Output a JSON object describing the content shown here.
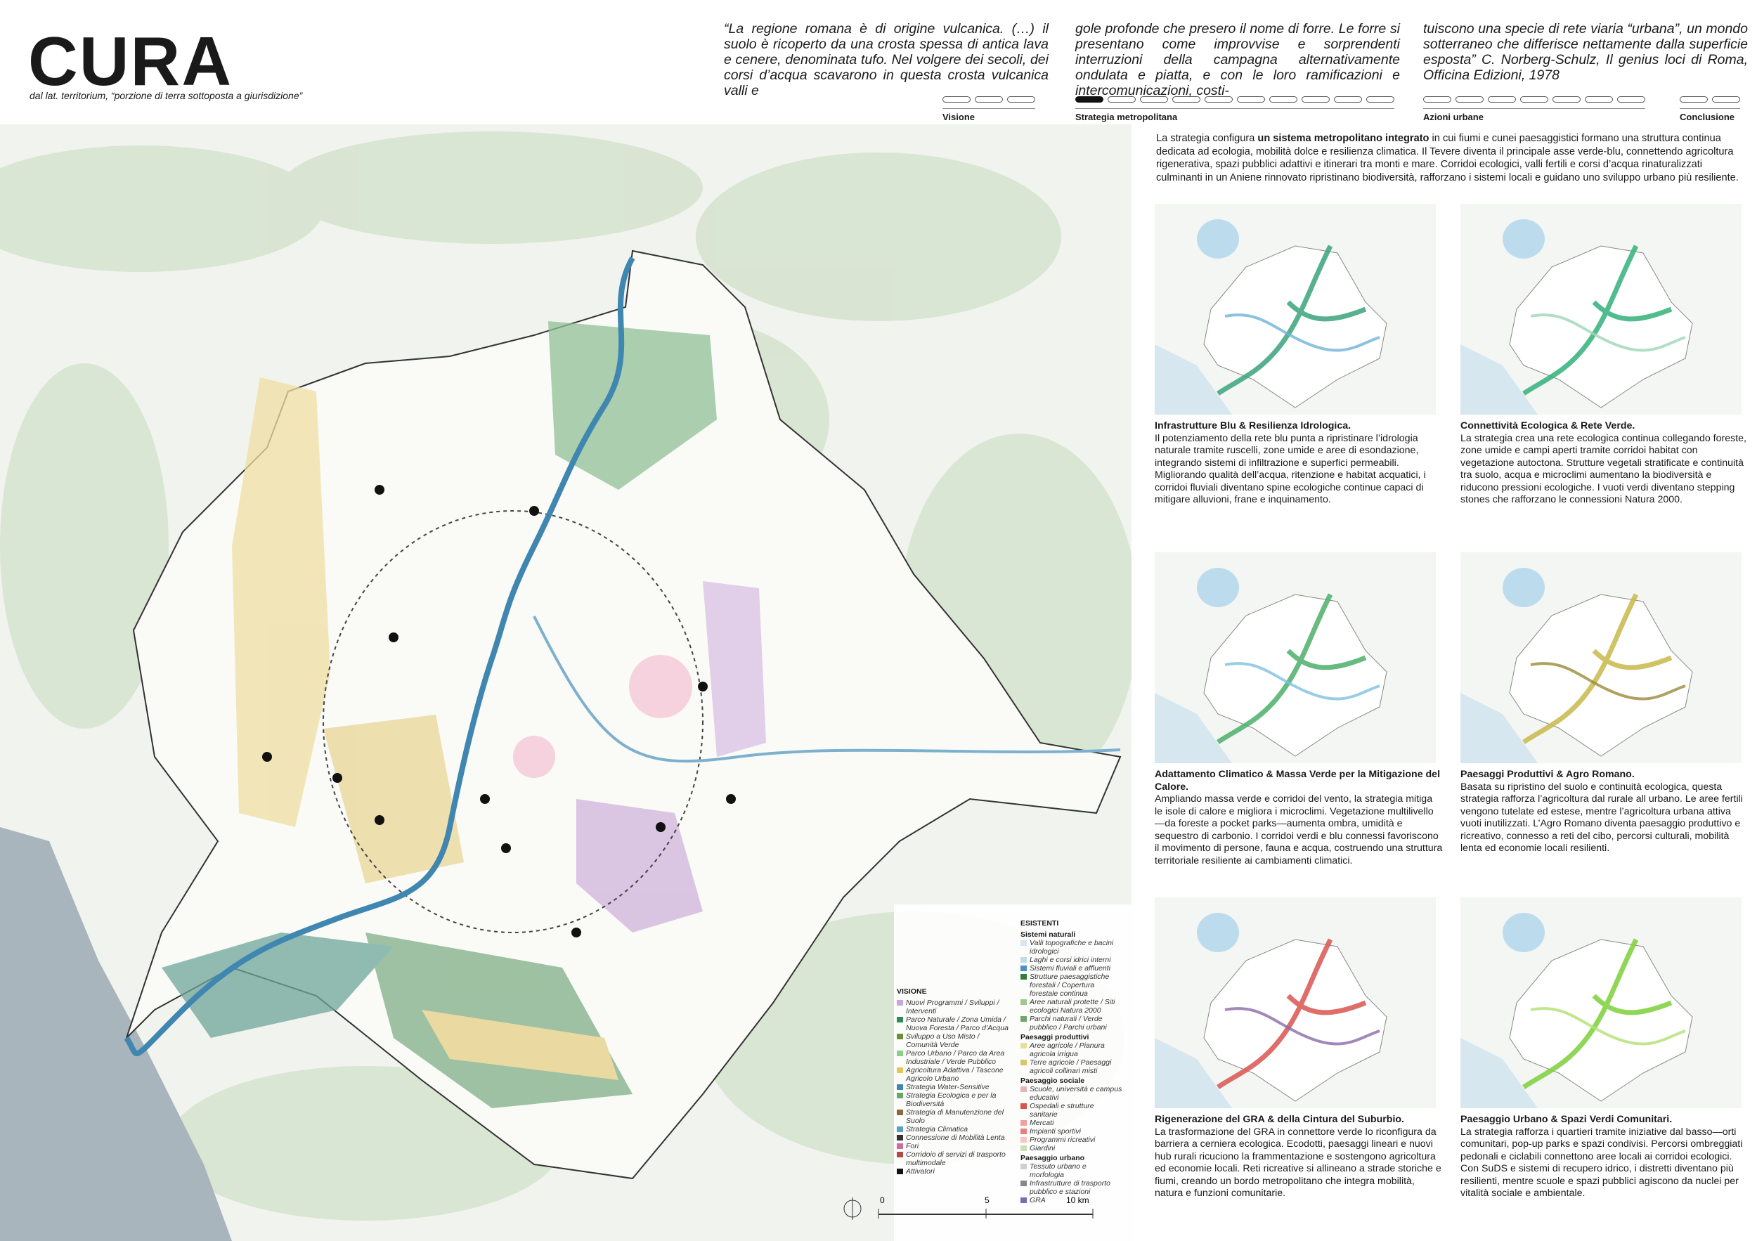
{
  "header": {
    "title": "CURA",
    "subtitle": "dal lat. territorium, “porzione di terra sottoposta a giurisdizione”"
  },
  "quote": [
    "“La regione romana è di origine vulcanica. (…) il suolo è ricoperto da una crosta spessa di antica lava e cenere, denominata tufo. Nel volgere dei secoli, dei corsi d’acqua scavarono in questa crosta vulcanica valli e",
    "gole profonde che presero il nome di forre. Le forre si presentano come improvvise e sorprendenti interruzioni della campagna alternativamente ondulata e piatta, e con le loro ramificazioni e intercomunicazioni, costi-",
    "tuiscono una specie di rete viaria “urbana”, un mondo sotterraneo che differisce nettamente dalla superficie esposta” C. Norberg-Schulz, Il genius loci di Roma, Officina Edizioni, 1978"
  ],
  "nav": [
    "Visione",
    "Strategia metropolitana",
    "Azioni urbane",
    "Conclusione"
  ],
  "intro": {
    "before": "La strategia configura ",
    "bold": "un sistema metropolitano integrato",
    "after": " in cui fiumi e cunei paesaggistici formano una struttura continua dedicata ad ecologia, mobilità dolce e resilienza climatica. Il Tevere diventa il principale asse verde-blu, connettendo agricoltura rigenerativa, spazi pubblici adattivi e itinerari tra monti e mare. Corridoi ecologici, valli fertili e corsi d’acqua rinaturalizzati culminanti in un Aniene rinnovato ripristinano biodiversità, rafforzano i sistemi locali e guidano uno sviluppo urbano più resiliente."
  },
  "panels": [
    {
      "title": "Infrastrutture Blu & Resilienza Idrologica.",
      "body": "Il potenziamento della rete blu punta a ripristinare l’idrologia naturale tramite ruscelli, zone umide e aree di esondazione, integrando sistemi di infiltrazione e superfici permeabili. Migliorando qualità dell’acqua, ritenzione e habitat acquatici, i corridoi fluviali diventano spine ecologiche continue capaci di mitigare alluvioni, frane e inquinamento."
    },
    {
      "title": "Connettività Ecologica & Rete Verde.",
      "body": "La strategia crea una rete ecologica continua collegando foreste, zone umide e campi aperti tramite corridoi habitat con vegetazione autoctona. Strutture vegetali stratificate e continuità tra suolo, acqua e microclimi aumentano la biodiversità e riducono pressioni ecologiche. I vuoti verdi diventano stepping stones che rafforzano le connessioni Natura 2000."
    },
    {
      "title": "Adattamento Climatico & Massa Verde per la Mitigazione del Calore.",
      "body": "Ampliando massa verde e corridoi del vento, la strategia mitiga le isole di calore e migliora i microclimi. Vegetazione multilivello—da foreste a pocket parks—aumenta ombra, umidità e sequestro di carbonio. I corridoi verdi e blu connessi favoriscono il movimento di persone, fauna e acqua, costruendo una struttura territoriale resiliente ai cambiamenti climatici."
    },
    {
      "title": "Paesaggi Produttivi & Agro Romano.",
      "body": "Basata su ripristino del suolo e continuità ecologica, questa strategia rafforza l’agricoltura dal rurale all urbano. Le aree fertili vengono tutelate ed estese, mentre l’agricoltura urbana attiva vuoti inutilizzati. L’Agro Romano diventa paesaggio produttivo e ricreativo, connesso a reti del cibo, percorsi culturali, mobilità lenta ed economie locali resilienti."
    },
    {
      "title": "Rigenerazione del GRA & della Cintura del Suburbio.",
      "body": "La trasformazione del GRA in connettore verde lo riconfigura da barriera a cerniera ecologica. Ecodotti, paesaggi lineari e nuovi hub rurali ricuciono la frammentazione e sostengono agricoltura ed economie locali. Reti ricreative si allineano a strade storiche e fiumi, creando un bordo metropolitano che integra mobilità, natura e funzioni comunitarie."
    },
    {
      "title": "Paesaggio Urbano & Spazi Verdi Comunitari.",
      "body": "La strategia rafforza i quartieri tramite iniziative dal basso—orti comunitari, pop-up parks e spazi condivisi. Percorsi ombreggiati pedonali e ciclabili connettono aree locali ai corridoi ecologici. Con SuDS e sistemi di recupero idrico, i distretti diventano più resilienti, mentre scuole e spazi pubblici agiscono da nuclei per vitalità sociale e ambientale."
    }
  ],
  "legend": {
    "visione": {
      "heading": "VISIONE",
      "items": [
        "Nuovi Programmi / Sviluppi / Interventi",
        "Parco Naturale / Zona Umida / Nuova Foresta / Parco d’Acqua",
        "Sviluppo a Uso Misto / Comunità Verde",
        "Parco Urbano / Parco da Area Industriale / Verde Pubblico",
        "Agricoltura Adattiva / Tascone Agricolo Urbano",
        "Strategia Water-Sensitive",
        "Strategia Ecologica e per la Biodiversità",
        "Strategia di Manutenzione del Suolo",
        "Strategia Climatica",
        "Connessione di Mobilità Lenta",
        "Fori",
        "Corridoio di servizi di trasporto multimodale",
        "Attivatori"
      ]
    },
    "esistenti": {
      "heading": "ESISTENTI",
      "groups": [
        {
          "name": "Sistemi naturali",
          "items": [
            "Valli topografiche e bacini idrologici",
            "Laghi e corsi idrici interni",
            "Sistemi fluviali e affluenti",
            "Strutture paesaggistiche forestali / Copertura forestale continua",
            "Aree naturali protette / Siti ecologici Natura 2000",
            "Parchi naturali / Verde pubblico / Parchi urbani"
          ]
        },
        {
          "name": "Paesaggi produttivi",
          "items": [
            "Aree agricole / Pianura agricola irrigua",
            "Terre agricole / Paesaggi agricoli collinari misti"
          ]
        },
        {
          "name": "Paesaggio sociale",
          "items": [
            "Scuole, università e campus educativi",
            "Ospedali e strutture sanitarie",
            "Mercati",
            "Impianti sportivi",
            "Programmi ricreativi",
            "Giardini"
          ]
        },
        {
          "name": "Paesaggio urbano",
          "items": [
            "Tessuto urbano e morfologia",
            "Infrastrutture di trasporto pubblico e stazioni",
            "GRA"
          ]
        }
      ]
    }
  },
  "scale": [
    "0",
    "5",
    "10 km"
  ]
}
